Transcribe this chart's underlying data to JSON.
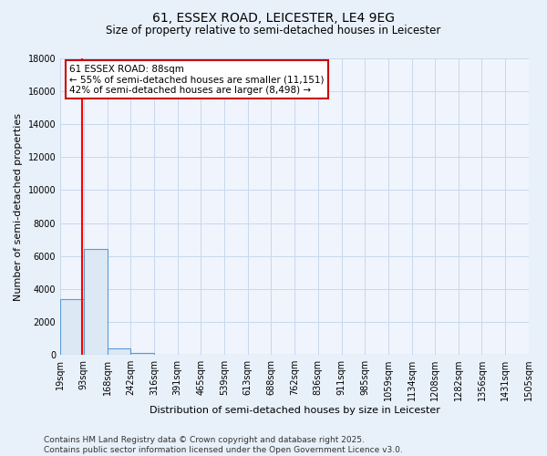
{
  "title_line1": "61, ESSEX ROAD, LEICESTER, LE4 9EG",
  "title_line2": "Size of property relative to semi-detached houses in Leicester",
  "xlabel": "Distribution of semi-detached houses by size in Leicester",
  "ylabel": "Number of semi-detached properties",
  "annotation_title": "61 ESSEX ROAD: 88sqm",
  "annotation_line1": "← 55% of semi-detached houses are smaller (11,151)",
  "annotation_line2": "42% of semi-detached houses are larger (8,498) →",
  "footer_line1": "Contains HM Land Registry data © Crown copyright and database right 2025.",
  "footer_line2": "Contains public sector information licensed under the Open Government Licence v3.0.",
  "bar_edges": [
    19,
    93,
    168,
    242,
    316,
    391,
    465,
    539,
    613,
    688,
    762,
    836,
    911,
    985,
    1059,
    1134,
    1208,
    1282,
    1356,
    1431,
    1505
  ],
  "bar_heights": [
    3400,
    6400,
    390,
    100,
    0,
    0,
    0,
    0,
    0,
    0,
    0,
    0,
    0,
    0,
    0,
    0,
    0,
    0,
    0,
    0
  ],
  "bar_color": "#dce9f5",
  "bar_edge_color": "#5b9bd5",
  "red_line_x": 88,
  "ylim": [
    0,
    18000
  ],
  "yticks": [
    0,
    2000,
    4000,
    6000,
    8000,
    10000,
    12000,
    14000,
    16000,
    18000
  ],
  "background_color": "#e8f0fa",
  "plot_bg_color": "#f0f4fc",
  "grid_color": "#c8d8ee",
  "annotation_box_color": "#ffffff",
  "annotation_box_edge": "#cc0000",
  "title_fontsize": 10,
  "subtitle_fontsize": 8.5,
  "axis_label_fontsize": 8,
  "tick_fontsize": 7,
  "annotation_fontsize": 7.5,
  "footer_fontsize": 6.5
}
